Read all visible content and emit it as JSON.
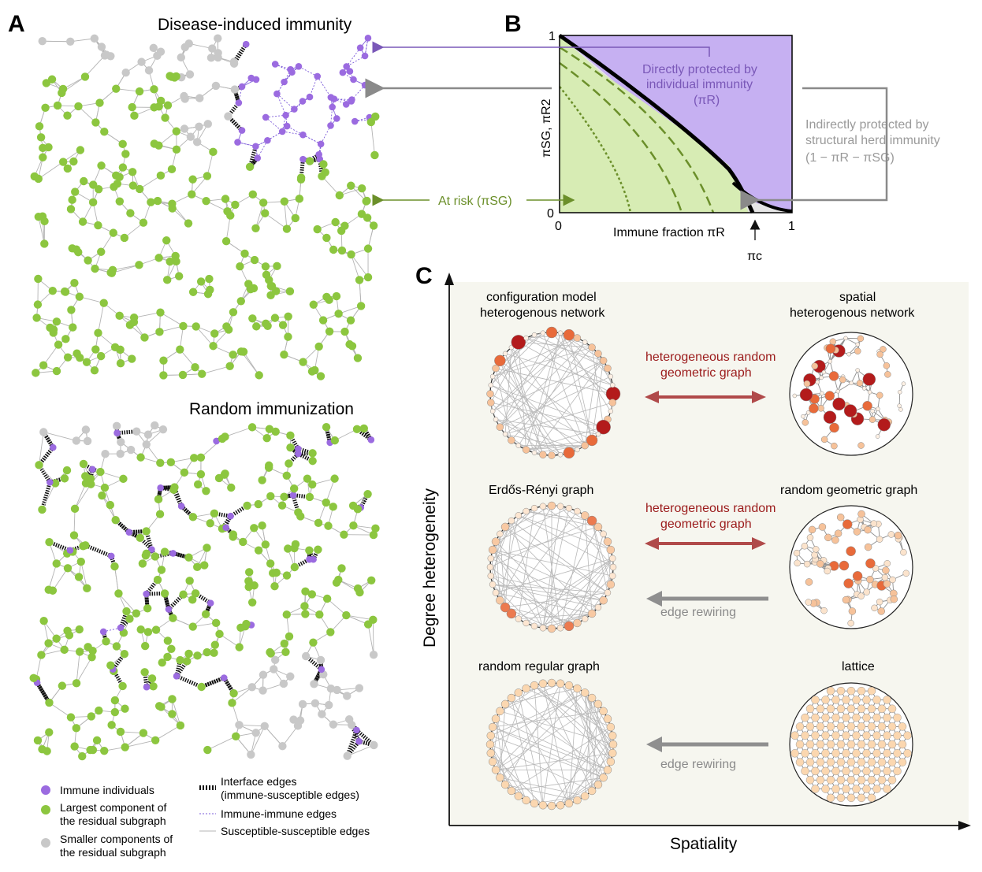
{
  "panel_a": {
    "letter": "A",
    "top_title": "Disease-induced immunity",
    "bottom_title": "Random immunization",
    "legend": {
      "immune": "Immune individuals",
      "largest_1": "Largest component of",
      "largest_2": "the residual subgraph",
      "smaller_1": "Smaller components of",
      "smaller_2": "the residual subgraph",
      "interface_1": "Interface edges",
      "interface_2": "(immune-susceptible edges)",
      "immune_immune": "Immune-immune edges",
      "susc_susc": "Susceptible-susceptible edges"
    }
  },
  "panel_b": {
    "letter": "B",
    "xlabel": "Immune fraction πR",
    "ylabel": "πSG, πR2",
    "tick_x0": "0",
    "tick_x1": "1",
    "tick_y0": "0",
    "tick_y1": "1",
    "pi_c": "πc",
    "direct_1": "Directly protected by",
    "direct_2": "individual immunity",
    "direct_3": "(πR)",
    "indirect_1": "Indirectly protected by",
    "indirect_2": "structural herd immunity",
    "indirect_3": "(1 − πR − πSG)",
    "at_risk": "At risk (πSG)"
  },
  "panel_c": {
    "letter": "C",
    "ylabel": "Degree heterogeneity",
    "xlabel": "Spatiality",
    "net_config_1": "configuration model",
    "net_config_2": "heterogenous network",
    "net_spatial_1": "spatial",
    "net_spatial_2": "heterogenous network",
    "net_er": "Erdős-Rényi graph",
    "net_rgg": "random geometric graph",
    "net_rrg": "random regular graph",
    "net_lattice": "lattice",
    "hrgg_1": "heterogeneous random",
    "hrgg_2": "geometric graph",
    "rewire": "edge rewiring"
  },
  "colors": {
    "immune": "#9b6be0",
    "largest": "#8cc63f",
    "smaller": "#c8c8c8",
    "region_direct": "#c6b0f2",
    "region_risk": "#d7ecb4",
    "region_indirect": "#e6e6e6",
    "dark_red": "#9b1b1b",
    "panel_c_bg": "#f6f6ef"
  }
}
